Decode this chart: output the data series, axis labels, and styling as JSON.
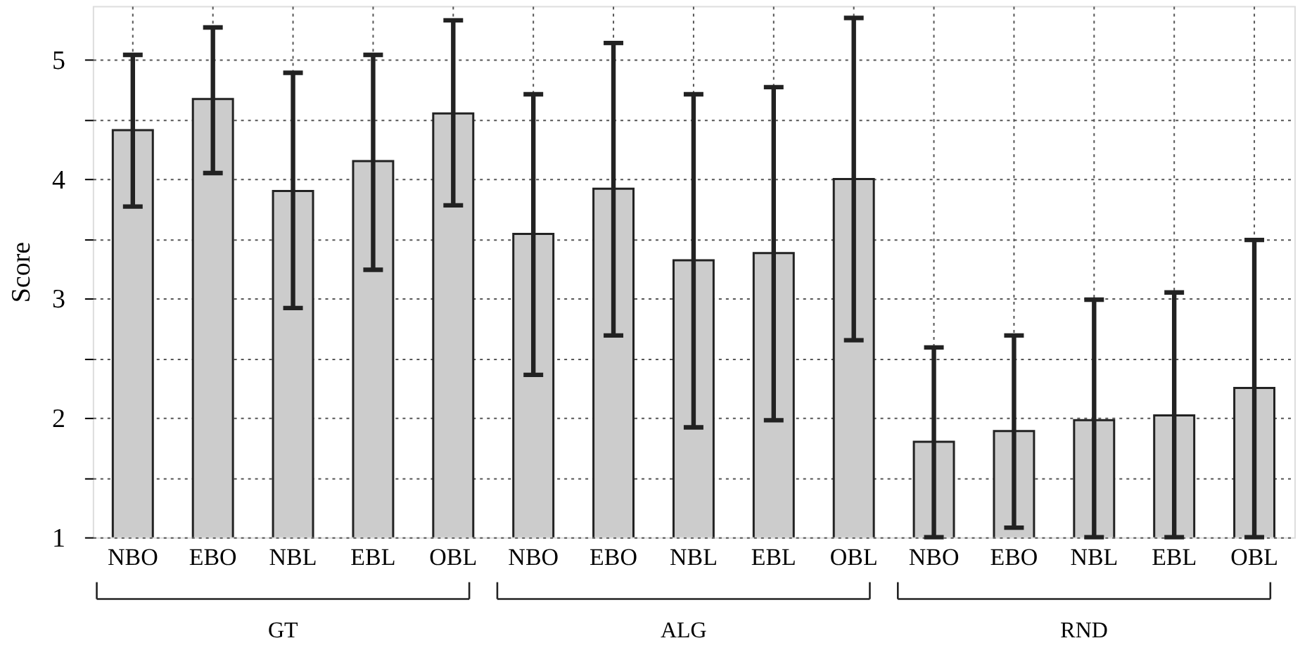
{
  "chart_data": {
    "type": "bar",
    "ylabel": "Score",
    "categories": [
      "NBO",
      "EBO",
      "NBL",
      "EBL",
      "OBL",
      "NBO",
      "EBO",
      "NBL",
      "EBL",
      "OBL",
      "NBO",
      "EBO",
      "NBL",
      "EBL",
      "OBL"
    ],
    "values": [
      4.41,
      4.67,
      3.9,
      4.15,
      4.55,
      3.54,
      3.92,
      3.32,
      3.38,
      4.0,
      1.8,
      1.89,
      1.98,
      2.02,
      2.25
    ],
    "errors": [
      [
        3.77,
        5.04
      ],
      [
        4.05,
        5.27
      ],
      [
        2.92,
        4.89
      ],
      [
        3.24,
        5.04
      ],
      [
        3.78,
        5.33
      ],
      [
        2.36,
        4.71
      ],
      [
        2.69,
        5.14
      ],
      [
        1.92,
        4.71
      ],
      [
        1.98,
        4.77
      ],
      [
        2.65,
        5.35
      ],
      [
        1.0,
        2.59
      ],
      [
        1.08,
        2.69
      ],
      [
        1.0,
        2.99
      ],
      [
        1.0,
        3.05
      ],
      [
        1.0,
        3.49
      ]
    ],
    "color": "#cccccc",
    "ylim": [
      1,
      5.45
    ],
    "yticks": [
      1,
      {
        "value": 1.5,
        "label": null
      },
      2,
      {
        "value": 2.5,
        "label": null
      },
      3,
      {
        "value": 3.5,
        "label": null
      },
      4,
      {
        "value": 4.5,
        "label": null
      },
      5
    ],
    "grid": true,
    "annotations": [
      "GT",
      "ALG",
      "RND"
    ]
  }
}
